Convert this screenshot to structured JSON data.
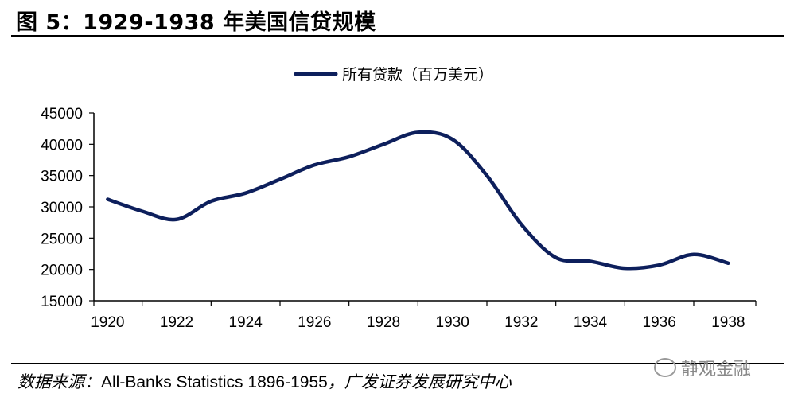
{
  "figure": {
    "title": "图 5：1929-1938 年美国信贷规模"
  },
  "source": {
    "label": "数据来源：",
    "text": "All-Banks Statistics 1896-1955",
    "org": "，广发证券发展研究中心"
  },
  "watermark": {
    "text": "静观金融"
  },
  "colors": {
    "series": "#0d1f5c",
    "axis": "#000000"
  },
  "chart_data": {
    "type": "line",
    "title": "",
    "xlabel": "",
    "ylabel": "",
    "legend_position": "top-center",
    "xlim": [
      1919.6,
      1938.8
    ],
    "ylim": [
      15000,
      45000
    ],
    "xticks": [
      1920,
      1922,
      1924,
      1926,
      1928,
      1930,
      1932,
      1934,
      1936,
      1938
    ],
    "yticks": [
      15000,
      20000,
      25000,
      30000,
      35000,
      40000,
      45000
    ],
    "series": [
      {
        "name": "所有贷款（百万美元）",
        "x": [
          1920,
          1921,
          1922,
          1923,
          1924,
          1925,
          1926,
          1927,
          1928,
          1929,
          1930,
          1931,
          1932,
          1933,
          1934,
          1935,
          1936,
          1937,
          1938
        ],
        "values": [
          31200,
          29300,
          28000,
          30900,
          32200,
          34400,
          36700,
          38000,
          40000,
          41900,
          40800,
          35000,
          27200,
          21900,
          21300,
          20200,
          20700,
          22400,
          21000
        ]
      }
    ]
  }
}
